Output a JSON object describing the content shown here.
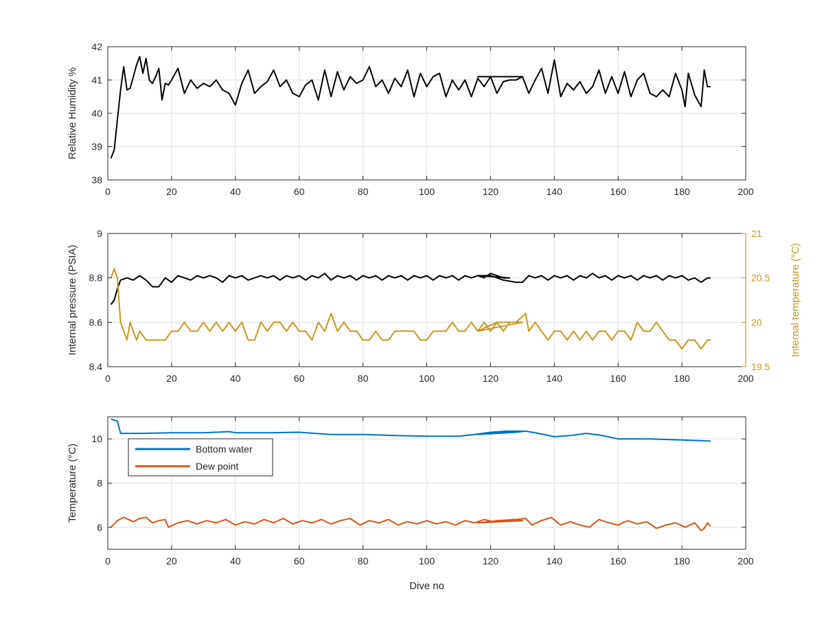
{
  "chart_data": [
    {
      "type": "line",
      "xlabel": "",
      "ylabel": "Relative Humidity %",
      "xlim": [
        0,
        200
      ],
      "ylim": [
        38,
        42
      ],
      "xticks": [
        0,
        20,
        40,
        60,
        80,
        100,
        120,
        140,
        160,
        180,
        200
      ],
      "yticks": [
        38,
        39,
        40,
        41,
        42
      ],
      "grid": true,
      "series": [
        {
          "color": "#000000",
          "x": [
            1,
            2,
            3,
            4,
            5,
            6,
            7,
            8,
            9,
            10,
            11,
            12,
            13,
            14,
            15,
            16,
            17,
            18,
            19,
            20,
            22,
            24,
            26,
            28,
            30,
            32,
            34,
            36,
            38,
            40,
            42,
            44,
            46,
            48,
            50,
            52,
            54,
            56,
            58,
            60,
            62,
            64,
            66,
            68,
            70,
            72,
            74,
            76,
            78,
            80,
            82,
            84,
            86,
            88,
            90,
            92,
            94,
            96,
            98,
            100,
            102,
            104,
            106,
            108,
            110,
            112,
            114,
            116,
            118,
            120,
            122,
            124,
            126,
            128,
            130,
            116,
            122,
            128,
            130,
            132,
            134,
            136,
            138,
            140,
            142,
            144,
            146,
            148,
            150,
            152,
            154,
            156,
            158,
            160,
            162,
            164,
            166,
            168,
            170,
            172,
            174,
            176,
            178,
            180,
            181,
            182,
            184,
            186,
            187,
            188,
            189
          ],
          "values": [
            38.65,
            38.9,
            39.8,
            40.7,
            41.4,
            40.7,
            40.75,
            41.1,
            41.45,
            41.7,
            41.2,
            41.65,
            41.0,
            40.9,
            41.1,
            41.35,
            40.4,
            40.9,
            40.85,
            41.0,
            41.35,
            40.6,
            41.0,
            40.75,
            40.9,
            40.8,
            41.0,
            40.7,
            40.6,
            40.25,
            40.9,
            41.3,
            40.6,
            40.8,
            40.95,
            41.3,
            40.8,
            41.0,
            40.6,
            40.5,
            40.85,
            41.0,
            40.4,
            41.3,
            40.5,
            41.25,
            40.7,
            41.1,
            40.9,
            41.0,
            41.4,
            40.8,
            41.0,
            40.6,
            41.05,
            40.8,
            41.3,
            40.5,
            41.2,
            40.8,
            41.1,
            41.2,
            40.5,
            41.0,
            40.7,
            41.0,
            40.5,
            41.05,
            40.8,
            41.1,
            40.6,
            40.95,
            41.0,
            41.0,
            41.1,
            41.1,
            41.1,
            41.1,
            41.1,
            40.6,
            41.0,
            41.35,
            40.6,
            41.6,
            40.5,
            40.9,
            40.7,
            40.95,
            40.6,
            40.8,
            41.3,
            40.6,
            41.1,
            40.6,
            41.25,
            40.5,
            41.0,
            41.2,
            40.6,
            40.5,
            40.7,
            40.5,
            41.2,
            40.7,
            40.2,
            41.2,
            40.55,
            40.2,
            41.3,
            40.8,
            40.8
          ]
        }
      ]
    },
    {
      "type": "line",
      "xlabel": "",
      "ylabel": "Internal pressure (PSIA)",
      "ylabel_right": "Internal temperature (°C)",
      "xlim": [
        0,
        200
      ],
      "ylim": [
        8.4,
        9
      ],
      "ylim_right": [
        19.5,
        21
      ],
      "xticks": [
        0,
        20,
        40,
        60,
        80,
        100,
        120,
        140,
        160,
        180,
        200
      ],
      "yticks": [
        8.4,
        8.6,
        8.8,
        9
      ],
      "yticks_right": [
        19.5,
        20,
        20.5,
        21
      ],
      "right_axis_color": "#c8961e",
      "grid": true,
      "series": [
        {
          "axis": "left",
          "color": "#000000",
          "x": [
            1,
            2,
            3,
            4,
            6,
            8,
            10,
            12,
            14,
            16,
            18,
            20,
            22,
            24,
            26,
            28,
            30,
            32,
            34,
            36,
            38,
            40,
            42,
            44,
            46,
            48,
            50,
            52,
            54,
            56,
            58,
            60,
            62,
            64,
            66,
            68,
            70,
            72,
            74,
            76,
            78,
            80,
            82,
            84,
            86,
            88,
            90,
            92,
            94,
            96,
            98,
            100,
            102,
            104,
            106,
            108,
            110,
            112,
            114,
            116,
            118,
            120,
            122,
            124,
            126,
            116,
            120,
            124,
            128,
            130,
            132,
            134,
            136,
            138,
            140,
            142,
            144,
            146,
            148,
            150,
            152,
            154,
            156,
            158,
            160,
            162,
            164,
            166,
            168,
            170,
            172,
            174,
            176,
            178,
            180,
            182,
            184,
            186,
            188,
            189
          ],
          "values": [
            8.68,
            8.7,
            8.75,
            8.79,
            8.8,
            8.79,
            8.81,
            8.79,
            8.76,
            8.76,
            8.8,
            8.78,
            8.81,
            8.8,
            8.79,
            8.81,
            8.8,
            8.81,
            8.8,
            8.78,
            8.81,
            8.8,
            8.81,
            8.79,
            8.8,
            8.81,
            8.8,
            8.81,
            8.79,
            8.81,
            8.8,
            8.81,
            8.79,
            8.81,
            8.8,
            8.82,
            8.79,
            8.81,
            8.8,
            8.81,
            8.79,
            8.81,
            8.8,
            8.81,
            8.79,
            8.81,
            8.8,
            8.81,
            8.79,
            8.81,
            8.8,
            8.81,
            8.79,
            8.81,
            8.8,
            8.81,
            8.79,
            8.81,
            8.8,
            8.81,
            8.8,
            8.82,
            8.81,
            8.8,
            8.8,
            8.81,
            8.81,
            8.79,
            8.78,
            8.78,
            8.81,
            8.8,
            8.81,
            8.79,
            8.81,
            8.8,
            8.81,
            8.79,
            8.81,
            8.8,
            8.82,
            8.8,
            8.81,
            8.79,
            8.81,
            8.8,
            8.81,
            8.79,
            8.81,
            8.8,
            8.81,
            8.79,
            8.81,
            8.8,
            8.81,
            8.79,
            8.8,
            8.78,
            8.8,
            8.8
          ]
        },
        {
          "axis": "right",
          "color": "#c8961e",
          "x": [
            1,
            2,
            3,
            4,
            5,
            6,
            7,
            8,
            9,
            10,
            12,
            14,
            16,
            18,
            20,
            22,
            24,
            26,
            28,
            30,
            32,
            34,
            36,
            38,
            40,
            42,
            44,
            46,
            48,
            50,
            52,
            54,
            56,
            58,
            60,
            62,
            64,
            66,
            68,
            70,
            72,
            74,
            76,
            78,
            80,
            82,
            84,
            86,
            88,
            90,
            92,
            94,
            96,
            98,
            100,
            102,
            104,
            106,
            108,
            110,
            112,
            114,
            116,
            118,
            120,
            122,
            124,
            126,
            128,
            130,
            116,
            122,
            128,
            131,
            132,
            134,
            136,
            138,
            140,
            142,
            144,
            146,
            148,
            150,
            152,
            154,
            156,
            158,
            160,
            162,
            164,
            166,
            168,
            170,
            172,
            174,
            176,
            178,
            180,
            182,
            184,
            186,
            188,
            189
          ],
          "values": [
            20.5,
            20.6,
            20.5,
            20.0,
            19.9,
            19.8,
            20.0,
            19.9,
            19.8,
            19.9,
            19.8,
            19.8,
            19.8,
            19.8,
            19.9,
            19.9,
            20.0,
            19.9,
            19.9,
            20.0,
            19.9,
            20.0,
            19.9,
            20.0,
            19.9,
            20.0,
            19.8,
            19.8,
            20.0,
            19.9,
            20.0,
            20.0,
            19.9,
            20.0,
            19.9,
            19.9,
            19.8,
            20.0,
            19.9,
            20.1,
            19.9,
            20.0,
            19.9,
            19.9,
            19.8,
            19.8,
            19.9,
            19.8,
            19.8,
            19.9,
            19.9,
            19.9,
            19.9,
            19.8,
            19.8,
            19.9,
            19.9,
            19.9,
            20.0,
            19.9,
            19.9,
            20.0,
            19.9,
            20.0,
            19.9,
            20.0,
            19.9,
            20.0,
            20.0,
            20.0,
            19.9,
            20.0,
            20.0,
            20.1,
            19.9,
            20.0,
            19.9,
            19.8,
            19.9,
            19.9,
            19.8,
            19.9,
            19.8,
            19.9,
            19.8,
            19.9,
            19.9,
            19.8,
            19.9,
            19.9,
            19.8,
            20.0,
            19.9,
            19.9,
            20.0,
            19.9,
            19.8,
            19.8,
            19.7,
            19.8,
            19.8,
            19.7,
            19.8,
            19.8
          ]
        }
      ]
    },
    {
      "type": "line",
      "xlabel": "Dive no",
      "ylabel": "Temperature (°C)",
      "xlim": [
        0,
        200
      ],
      "ylim": [
        5,
        11
      ],
      "xticks": [
        0,
        20,
        40,
        60,
        80,
        100,
        120,
        140,
        160,
        180,
        200
      ],
      "yticks": [
        6,
        8,
        10
      ],
      "grid": true,
      "legend_placement": "top-left",
      "series": [
        {
          "name": "Bottom water",
          "color": "#0072bd",
          "x": [
            1,
            3,
            4,
            10,
            20,
            30,
            38,
            40,
            50,
            60,
            70,
            80,
            90,
            100,
            110,
            115,
            120,
            125,
            130,
            116,
            122,
            128,
            131,
            135,
            140,
            145,
            150,
            155,
            160,
            170,
            180,
            189
          ],
          "values": [
            10.9,
            10.8,
            10.25,
            10.25,
            10.28,
            10.28,
            10.33,
            10.28,
            10.28,
            10.3,
            10.2,
            10.2,
            10.15,
            10.12,
            10.12,
            10.2,
            10.3,
            10.35,
            10.35,
            10.2,
            10.25,
            10.3,
            10.35,
            10.25,
            10.1,
            10.15,
            10.25,
            10.15,
            10.0,
            10.0,
            9.95,
            9.9
          ]
        },
        {
          "name": "Dew point",
          "color": "#d95319",
          "x": [
            1,
            3,
            5,
            8,
            10,
            12,
            14,
            16,
            18,
            19,
            22,
            25,
            28,
            31,
            34,
            37,
            40,
            43,
            46,
            49,
            52,
            55,
            58,
            61,
            64,
            67,
            70,
            73,
            76,
            79,
            82,
            85,
            88,
            91,
            94,
            97,
            100,
            103,
            106,
            109,
            112,
            115,
            118,
            121,
            124,
            127,
            130,
            116,
            122,
            128,
            131,
            133,
            136,
            139,
            142,
            145,
            148,
            151,
            154,
            157,
            160,
            163,
            166,
            169,
            172,
            175,
            178,
            181,
            184,
            186,
            187,
            188,
            189
          ],
          "values": [
            6.0,
            6.3,
            6.45,
            6.25,
            6.4,
            6.45,
            6.2,
            6.3,
            6.35,
            6.0,
            6.2,
            6.3,
            6.15,
            6.3,
            6.2,
            6.35,
            6.1,
            6.25,
            6.15,
            6.35,
            6.2,
            6.4,
            6.15,
            6.3,
            6.2,
            6.35,
            6.15,
            6.3,
            6.4,
            6.1,
            6.3,
            6.2,
            6.35,
            6.1,
            6.25,
            6.15,
            6.3,
            6.15,
            6.25,
            6.1,
            6.3,
            6.2,
            6.35,
            6.25,
            6.3,
            6.35,
            6.3,
            6.2,
            6.3,
            6.35,
            6.4,
            6.1,
            6.3,
            6.45,
            6.1,
            6.25,
            6.1,
            6.0,
            6.35,
            6.2,
            6.1,
            6.3,
            6.15,
            6.25,
            5.95,
            6.1,
            6.2,
            6.0,
            6.2,
            5.85,
            5.95,
            6.2,
            6.05
          ]
        }
      ]
    }
  ]
}
